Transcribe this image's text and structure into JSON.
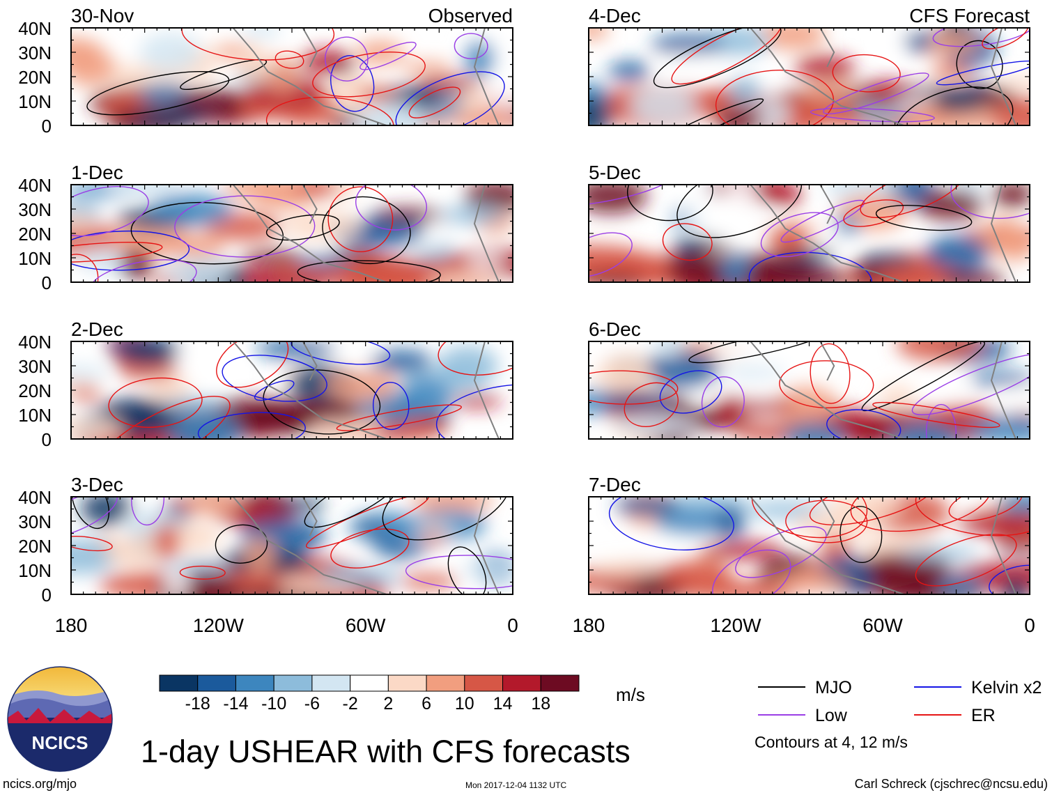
{
  "chart_data": {
    "type": "heatmap",
    "title": "1-day USHEAR with CFS forecasts",
    "observed_label": "Observed",
    "forecast_label": "CFS Forecast",
    "panels": [
      {
        "date": "30-Nov",
        "column": "observed"
      },
      {
        "date": "1-Dec",
        "column": "observed"
      },
      {
        "date": "2-Dec",
        "column": "observed"
      },
      {
        "date": "3-Dec",
        "column": "observed"
      },
      {
        "date": "4-Dec",
        "column": "forecast"
      },
      {
        "date": "5-Dec",
        "column": "forecast"
      },
      {
        "date": "6-Dec",
        "column": "forecast"
      },
      {
        "date": "7-Dec",
        "column": "forecast"
      }
    ],
    "y_ticks": [
      "40N",
      "30N",
      "20N",
      "10N",
      "0"
    ],
    "x_ticks": [
      "180",
      "120W",
      "60W",
      "0"
    ],
    "lat_range": [
      0,
      40
    ],
    "lon_range": [
      -180,
      0
    ],
    "colorbar": {
      "unit": "m/s",
      "tick_labels": [
        "-18",
        "-14",
        "-10",
        "-6",
        "-2",
        "2",
        "6",
        "10",
        "14",
        "18"
      ],
      "colors": [
        "#0a3563",
        "#1b5a9c",
        "#3d86be",
        "#8dbcdb",
        "#d3e6f2",
        "#ffffff",
        "#fbd9c6",
        "#f19e7f",
        "#d65746",
        "#b3192b",
        "#6d0b22"
      ]
    },
    "legend": [
      {
        "label": "MJO",
        "color": "#000000"
      },
      {
        "label": "Kelvin x2",
        "color": "#1414e6"
      },
      {
        "label": "Low",
        "color": "#9a3ee6"
      },
      {
        "label": "ER",
        "color": "#e61414"
      }
    ],
    "contour_note": "Contours at 4, 12 m/s"
  },
  "logo_text": "NCICS",
  "footer": {
    "url": "ncics.org/mjo",
    "timestamp": "Mon 2017-12-04 1132 UTC",
    "credit": "Carl Schreck (cjschrec@ncsu.edu)"
  }
}
